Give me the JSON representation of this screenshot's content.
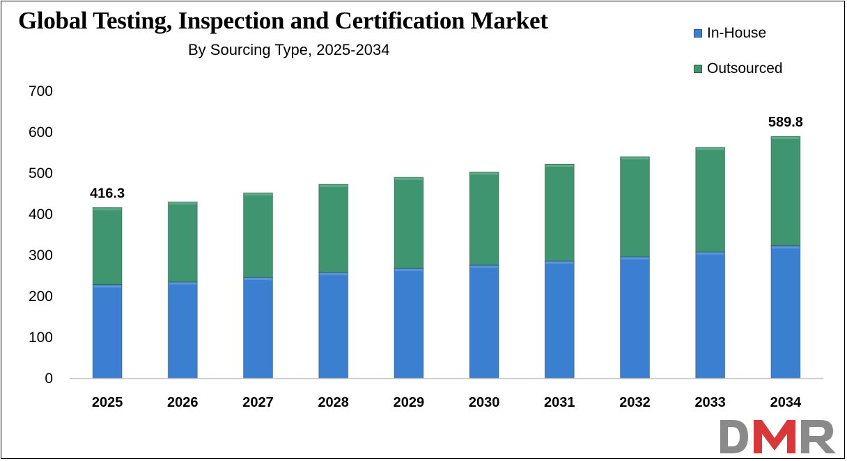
{
  "colors": {
    "in_house": "#3a7fd0",
    "outsourced": "#3f9570",
    "logo_gray": "#8a8a8a",
    "logo_red": "#d93838"
  },
  "logo": {
    "text": "DMR"
  },
  "chart_data": {
    "type": "bar",
    "stacked": true,
    "title": "Global Testing, Inspection and Certification Market",
    "subtitle": "By Sourcing Type, 2025-2034",
    "categories": [
      "2025",
      "2026",
      "2027",
      "2028",
      "2029",
      "2030",
      "2031",
      "2032",
      "2033",
      "2034"
    ],
    "series": [
      {
        "name": "In-House",
        "values": [
          228,
          235,
          246,
          258,
          268,
          276,
          286,
          296,
          308,
          323
        ]
      },
      {
        "name": "Outsourced",
        "values": [
          188.3,
          195,
          206,
          215,
          222,
          227,
          236,
          244,
          255,
          266.8
        ]
      }
    ],
    "totals": [
      416.3,
      430,
      452,
      473,
      490,
      503,
      522,
      540,
      563,
      589.8
    ],
    "data_labels": [
      {
        "category": "2025",
        "text": "416.3"
      },
      {
        "category": "2034",
        "text": "589.8"
      }
    ],
    "ylim": [
      0,
      700
    ],
    "yticks": [
      0,
      100,
      200,
      300,
      400,
      500,
      600,
      700
    ],
    "xlabel": "",
    "ylabel": "",
    "grid": false,
    "legend_position": "top-right"
  }
}
